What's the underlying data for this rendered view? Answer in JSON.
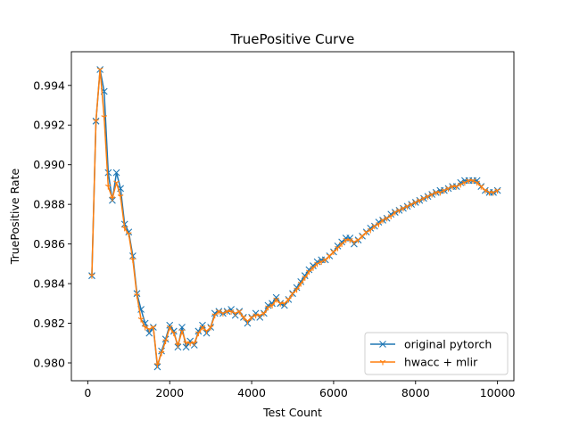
{
  "chart_data": {
    "type": "line",
    "title": "TruePositive Curve",
    "xlabel": "Test Count",
    "ylabel": "TruePositive Rate",
    "xlim": [
      -400,
      10400
    ],
    "ylim": [
      0.9791,
      0.9957
    ],
    "xticks": [
      0,
      2000,
      4000,
      6000,
      8000,
      10000
    ],
    "yticks": [
      0.98,
      0.982,
      0.984,
      0.986,
      0.988,
      0.99,
      0.992,
      0.994
    ],
    "xtick_labels": [
      "0",
      "2000",
      "4000",
      "6000",
      "8000",
      "10000"
    ],
    "ytick_labels": [
      "0.980",
      "0.982",
      "0.984",
      "0.986",
      "0.988",
      "0.990",
      "0.992",
      "0.994"
    ],
    "legend_position": "lower right",
    "grid": false,
    "x": [
      100,
      200,
      300,
      400,
      500,
      600,
      700,
      800,
      900,
      1000,
      1100,
      1200,
      1300,
      1400,
      1500,
      1600,
      1700,
      1800,
      1900,
      2000,
      2100,
      2200,
      2300,
      2400,
      2500,
      2600,
      2700,
      2800,
      2900,
      3000,
      3100,
      3200,
      3300,
      3400,
      3500,
      3600,
      3700,
      3800,
      3900,
      4000,
      4100,
      4200,
      4300,
      4400,
      4500,
      4600,
      4700,
      4800,
      4900,
      5000,
      5100,
      5200,
      5300,
      5400,
      5500,
      5600,
      5700,
      5800,
      5900,
      6000,
      6100,
      6200,
      6300,
      6400,
      6500,
      6600,
      6700,
      6800,
      6900,
      7000,
      7100,
      7200,
      7300,
      7400,
      7500,
      7600,
      7700,
      7800,
      7900,
      8000,
      8100,
      8200,
      8300,
      8400,
      8500,
      8600,
      8700,
      8800,
      8900,
      9000,
      9100,
      9200,
      9300,
      9400,
      9500,
      9600,
      9700,
      9800,
      9900,
      10000
    ],
    "series": [
      {
        "name": "original pytorch",
        "color": "#1f77b4",
        "marker": "x",
        "values": [
          0.9844,
          0.9922,
          0.9948,
          0.9937,
          0.9896,
          0.9882,
          0.9896,
          0.9888,
          0.987,
          0.9866,
          0.9854,
          0.9835,
          0.9827,
          0.982,
          0.9815,
          0.9818,
          0.9798,
          0.9806,
          0.9812,
          0.9819,
          0.9816,
          0.9808,
          0.9818,
          0.9808,
          0.9811,
          0.9809,
          0.9816,
          0.9819,
          0.9815,
          0.9818,
          0.9825,
          0.9826,
          0.9825,
          0.9826,
          0.9827,
          0.9824,
          0.9826,
          0.9823,
          0.982,
          0.9823,
          0.9825,
          0.9823,
          0.9825,
          0.9829,
          0.983,
          0.9833,
          0.983,
          0.9829,
          0.9832,
          0.9835,
          0.9838,
          0.9841,
          0.9844,
          0.9847,
          0.9849,
          0.9851,
          0.9852,
          0.9852,
          0.9854,
          0.9856,
          0.9859,
          0.9861,
          0.9863,
          0.9863,
          0.986,
          0.9862,
          0.9864,
          0.9866,
          0.9868,
          0.9869,
          0.9871,
          0.9872,
          0.9873,
          0.9875,
          0.9876,
          0.9877,
          0.9878,
          0.9879,
          0.988,
          0.9881,
          0.9882,
          0.9883,
          0.9884,
          0.9885,
          0.9886,
          0.9887,
          0.9887,
          0.9888,
          0.9889,
          0.9889,
          0.9891,
          0.9892,
          0.9892,
          0.9892,
          0.9892,
          0.9889,
          0.9887,
          0.9886,
          0.9886,
          0.9887
        ]
      },
      {
        "name": "hwacc + mlir",
        "color": "#ff7f0e",
        "marker": "tri_down",
        "values": [
          0.9844,
          0.9922,
          0.9948,
          0.9924,
          0.9889,
          0.9883,
          0.9891,
          0.9884,
          0.9868,
          0.9865,
          0.9852,
          0.9834,
          0.9822,
          0.9818,
          0.9817,
          0.9818,
          0.9799,
          0.9805,
          0.9811,
          0.9818,
          0.9815,
          0.9809,
          0.9816,
          0.981,
          0.981,
          0.981,
          0.9815,
          0.9818,
          0.9816,
          0.9818,
          0.9824,
          0.9826,
          0.9825,
          0.9826,
          0.9826,
          0.9825,
          0.9826,
          0.9823,
          0.9821,
          0.9823,
          0.9824,
          0.9824,
          0.9825,
          0.9828,
          0.9829,
          0.9832,
          0.983,
          0.983,
          0.9832,
          0.9835,
          0.9837,
          0.984,
          0.9843,
          0.9846,
          0.9848,
          0.985,
          0.9851,
          0.9852,
          0.9854,
          0.9856,
          0.9858,
          0.986,
          0.9862,
          0.9862,
          0.9861,
          0.9862,
          0.9864,
          0.9866,
          0.9867,
          0.9869,
          0.987,
          0.9872,
          0.9873,
          0.9874,
          0.9876,
          0.9877,
          0.9878,
          0.9879,
          0.988,
          0.9881,
          0.9882,
          0.9883,
          0.9884,
          0.9885,
          0.9886,
          0.9886,
          0.9887,
          0.9888,
          0.9889,
          0.9889,
          0.989,
          0.9891,
          0.9892,
          0.9892,
          0.9891,
          0.9889,
          0.9887,
          0.9886,
          0.9886,
          0.9887
        ]
      }
    ]
  }
}
